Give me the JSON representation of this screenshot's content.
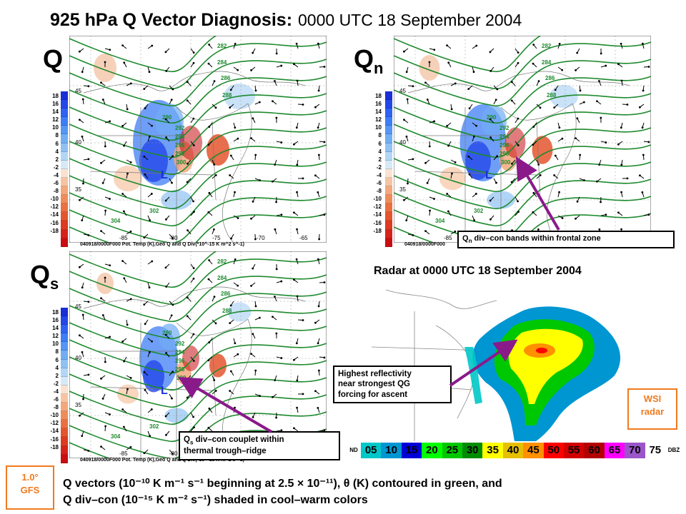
{
  "title": {
    "main": "925 hPa Q Vector Diagnosis:",
    "date": "0000 UTC 18 September 2004"
  },
  "panels": {
    "q": {
      "label": "Q",
      "caption": "040918/0000F000 Pot. Temp (K),Geo Q and Q Div(*10^-15 K m^2 s^-1)"
    },
    "qn": {
      "label": "Q",
      "sub": "n",
      "caption": "040918/0000F000"
    },
    "qs": {
      "label": "Q",
      "sub": "s",
      "caption": "040918/0000F000 Pot. Temp (K),Geo Q and Q Div(*10^-15 K m^2 s^-1)"
    }
  },
  "colorbar_ticks": [
    "18",
    "16",
    "14",
    "12",
    "10",
    "8",
    "6",
    "4",
    "2",
    "-2",
    "-4",
    "-6",
    "-8",
    "-10",
    "-12",
    "-14",
    "-16",
    "-18"
  ],
  "colorbar_colors": [
    "#1a2fd6",
    "#2447e8",
    "#2f62f2",
    "#3d7df6",
    "#5596f5",
    "#71adf3",
    "#8fc2f2",
    "#b2d6f5",
    "#d6e9f8",
    "#fbe2d0",
    "#f6c4a2",
    "#f3a87c",
    "#ef8c5a",
    "#ea7040",
    "#e4552e",
    "#dd3a22",
    "#d5221a",
    "#c90e12"
  ],
  "contour_labels": [
    "282",
    "284",
    "286",
    "288",
    "290",
    "292",
    "294",
    "296",
    "298",
    "300",
    "302",
    "304"
  ],
  "map_ticks": {
    "lat": [
      "45",
      "40",
      "35"
    ],
    "lon": [
      "-85",
      "-80",
      "-75",
      "-70",
      "-65"
    ]
  },
  "low_marker": "L",
  "callouts": {
    "qn": "div–con bands within frontal zone",
    "qn_prefix": "Q",
    "qn_sub": "n",
    "reflect": [
      "Highest reflectivity",
      "near strongest QG",
      "forcing for ascent"
    ],
    "qs_prefix": "Q",
    "qs_sub": "s",
    "qs_line1": " div–con couplet within",
    "qs_line2": "thermal trough–ridge"
  },
  "radar": {
    "title": "Radar at 0000 UTC 18 September 2004",
    "legend_nd": "ND",
    "legend_unit": "DBZ",
    "legend_values": [
      "05",
      "10",
      "15",
      "20",
      "25",
      "30",
      "35",
      "40",
      "45",
      "50",
      "55",
      "60",
      "65",
      "70",
      "75"
    ],
    "legend_colors": [
      "#00c8c8",
      "#0096d2",
      "#0000d8",
      "#00ff00",
      "#00c800",
      "#008c00",
      "#ffff00",
      "#e6c000",
      "#ff9000",
      "#ff0000",
      "#d20000",
      "#b40000",
      "#ff00ff",
      "#9a55c9",
      "#ffffff"
    ]
  },
  "badges": {
    "wsi": [
      "WSI",
      "radar"
    ],
    "gfs": [
      "1.0°",
      "GFS"
    ]
  },
  "bottom_caption": {
    "line1": "Q vectors (10⁻¹⁰ K m⁻¹ s⁻¹ beginning at 2.5 × 10⁻¹¹), θ (K) contoured in green, and",
    "line2": "Q div–con (10⁻¹⁵ K m⁻² s⁻¹) shaded in cool–warm colors"
  }
}
